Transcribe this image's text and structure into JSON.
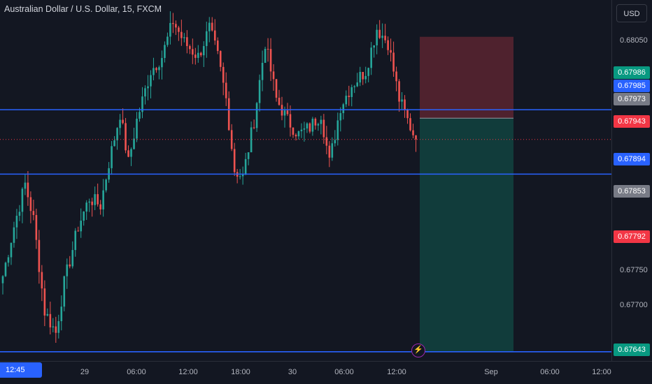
{
  "header": {
    "symbol_title": "Australian Dollar / U.S. Dollar, 15, FXCM"
  },
  "toolbar": {
    "currency_label": "USD"
  },
  "price_axis": {
    "ticks": [
      "0.68050",
      "0.67750",
      "0.67700"
    ],
    "tags": [
      {
        "label": "0.67986",
        "color": "#089981",
        "role": "high"
      },
      {
        "label": "0.67985",
        "color": "#2962ff",
        "role": "horizontal-line"
      },
      {
        "label": "0.67973",
        "color": "#787b86",
        "role": "position-entry"
      },
      {
        "label": "0.67943",
        "color": "#f23645",
        "role": "last-price"
      },
      {
        "label": "0.67894",
        "color": "#2962ff",
        "role": "horizontal-line"
      },
      {
        "label": "0.67853",
        "color": "#787b86",
        "role": "position-target-price"
      },
      {
        "label": "0.67792",
        "color": "#f23645",
        "role": "low"
      },
      {
        "label": "0.67643",
        "color": "#089981",
        "role": "position-target"
      }
    ]
  },
  "time_axis": {
    "crosshair_label": "12:45",
    "ticks": [
      "29",
      "06:00",
      "12:00",
      "18:00",
      "30",
      "06:00",
      "12:00",
      "Sep",
      "06:00",
      "12:00"
    ]
  },
  "chart_data": {
    "type": "candlestick",
    "symbol": "AUDUSD",
    "interval": "15",
    "source": "FXCM",
    "ylim": [
      0.6763,
      0.6814
    ],
    "horizontal_lines": [
      0.67985,
      0.67894,
      0.67643
    ],
    "last_price": 0.67943,
    "short_position": {
      "entry": 0.67973,
      "stop": 0.68088,
      "target": 0.67643
    },
    "colors": {
      "up": "#26a69a",
      "down": "#ef5350",
      "hline": "#2962ff",
      "stop_zone": "#5a2530",
      "target_zone": "#12403e"
    },
    "anchor_points": [
      {
        "bar": 0,
        "price": 0.6775
      },
      {
        "bar": 4,
        "price": 0.6782
      },
      {
        "bar": 8,
        "price": 0.6788
      },
      {
        "bar": 11,
        "price": 0.6783
      },
      {
        "bar": 15,
        "price": 0.677
      },
      {
        "bar": 19,
        "price": 0.6767
      },
      {
        "bar": 22,
        "price": 0.6774
      },
      {
        "bar": 27,
        "price": 0.6782
      },
      {
        "bar": 31,
        "price": 0.6786
      },
      {
        "bar": 35,
        "price": 0.6785
      },
      {
        "bar": 38,
        "price": 0.6791
      },
      {
        "bar": 42,
        "price": 0.6798
      },
      {
        "bar": 45,
        "price": 0.6791
      },
      {
        "bar": 48,
        "price": 0.6797
      },
      {
        "bar": 53,
        "price": 0.6804
      },
      {
        "bar": 57,
        "price": 0.6806
      },
      {
        "bar": 61,
        "price": 0.6811
      },
      {
        "bar": 65,
        "price": 0.6808
      },
      {
        "bar": 70,
        "price": 0.6806
      },
      {
        "bar": 74,
        "price": 0.681
      },
      {
        "bar": 77,
        "price": 0.6806
      },
      {
        "bar": 80,
        "price": 0.68
      },
      {
        "bar": 83,
        "price": 0.679
      },
      {
        "bar": 86,
        "price": 0.6789
      },
      {
        "bar": 90,
        "price": 0.6797
      },
      {
        "bar": 94,
        "price": 0.6808
      },
      {
        "bar": 98,
        "price": 0.68
      },
      {
        "bar": 102,
        "price": 0.6797
      },
      {
        "bar": 106,
        "price": 0.6795
      },
      {
        "bar": 110,
        "price": 0.6796
      },
      {
        "bar": 114,
        "price": 0.6798
      },
      {
        "bar": 117,
        "price": 0.6791
      },
      {
        "bar": 121,
        "price": 0.6799
      },
      {
        "bar": 125,
        "price": 0.6802
      },
      {
        "bar": 130,
        "price": 0.6804
      },
      {
        "bar": 134,
        "price": 0.681
      },
      {
        "bar": 138,
        "price": 0.6808
      },
      {
        "bar": 142,
        "price": 0.68
      },
      {
        "bar": 145,
        "price": 0.6797
      },
      {
        "bar": 148,
        "price": 0.67943
      }
    ]
  }
}
